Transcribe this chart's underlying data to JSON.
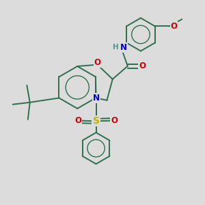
{
  "bg_color": "#dcdcdc",
  "bond_color": "#2d6e4e",
  "bond_width": 1.4,
  "atom_colors": {
    "O": "#cc0000",
    "N": "#0000cc",
    "S": "#b8b800",
    "H": "#4a9a8a"
  },
  "font_size_atom": 8.5,
  "fig_size": [
    3.0,
    3.0
  ],
  "dpi": 100
}
